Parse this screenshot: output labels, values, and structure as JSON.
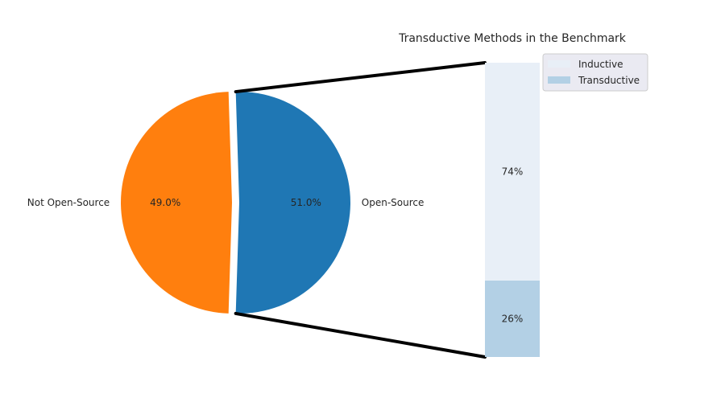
{
  "chart_data": [
    {
      "type": "pie",
      "labels": [
        "Not Open-Source",
        "Open-Source"
      ],
      "values": [
        49.0,
        51.0
      ],
      "value_labels": [
        "49.0%",
        "51.0%"
      ],
      "colors": [
        "#ff7f0e",
        "#1f77b4"
      ],
      "exploded_slice": "Open-Source"
    },
    {
      "type": "bar",
      "stacked": true,
      "title": "Transductive Methods in the Benchmark",
      "parent_slice": "Open-Source",
      "series": [
        {
          "name": "Transductive",
          "value": 26,
          "label": "26%",
          "color": "#b3d0e5"
        },
        {
          "name": "Inductive",
          "value": 74,
          "label": "74%",
          "color": "#e8eff7"
        }
      ],
      "legend": {
        "position": "top-right",
        "entries": [
          "Inductive",
          "Transductive"
        ]
      }
    }
  ]
}
